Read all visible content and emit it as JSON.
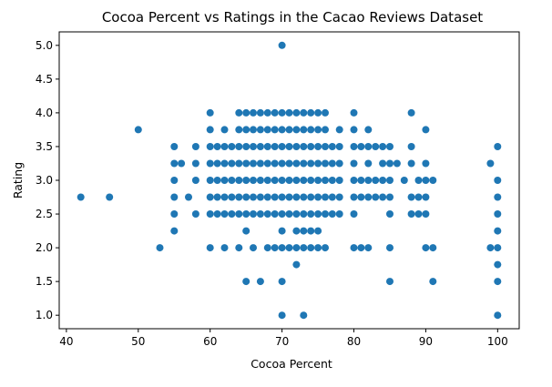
{
  "chart_data": {
    "type": "scatter",
    "title": "Cocoa Percent vs Ratings in the Cacao Reviews Dataset",
    "xlabel": "Cocoa Percent",
    "ylabel": "Rating",
    "xlim": [
      39,
      103
    ],
    "ylim": [
      0.8,
      5.2
    ],
    "xticks": [
      40,
      50,
      60,
      70,
      80,
      90,
      100
    ],
    "yticks": [
      1.0,
      1.5,
      2.0,
      2.5,
      3.0,
      3.5,
      4.0,
      4.5,
      5.0
    ],
    "xtick_labels": [
      "40",
      "50",
      "60",
      "70",
      "80",
      "90",
      "100"
    ],
    "ytick_labels": [
      "1.0",
      "1.5",
      "2.0",
      "2.5",
      "3.0",
      "3.5",
      "4.0",
      "4.5",
      "5.0"
    ],
    "grid": false,
    "marker_color": "#1f77b4",
    "points": [
      [
        42,
        2.75
      ],
      [
        46,
        2.75
      ],
      [
        50,
        3.75
      ],
      [
        53,
        2.0
      ],
      [
        55,
        3.5
      ],
      [
        55,
        3.25
      ],
      [
        55,
        3.0
      ],
      [
        55,
        2.75
      ],
      [
        55,
        2.5
      ],
      [
        55,
        2.25
      ],
      [
        56,
        3.25
      ],
      [
        57,
        2.75
      ],
      [
        58,
        3.5
      ],
      [
        58,
        3.25
      ],
      [
        58,
        3.0
      ],
      [
        58,
        2.5
      ],
      [
        60,
        4.0
      ],
      [
        60,
        3.75
      ],
      [
        60,
        3.5
      ],
      [
        60,
        3.25
      ],
      [
        60,
        3.0
      ],
      [
        60,
        2.75
      ],
      [
        60,
        2.5
      ],
      [
        60,
        2.0
      ],
      [
        61,
        3.5
      ],
      [
        61,
        3.25
      ],
      [
        61,
        3.0
      ],
      [
        61,
        2.75
      ],
      [
        61,
        2.5
      ],
      [
        62,
        3.75
      ],
      [
        62,
        3.5
      ],
      [
        62,
        3.25
      ],
      [
        62,
        3.0
      ],
      [
        62,
        2.75
      ],
      [
        62,
        2.5
      ],
      [
        62,
        2.0
      ],
      [
        63,
        3.5
      ],
      [
        63,
        3.25
      ],
      [
        63,
        3.0
      ],
      [
        63,
        2.75
      ],
      [
        63,
        2.5
      ],
      [
        64,
        4.0
      ],
      [
        64,
        3.75
      ],
      [
        64,
        3.5
      ],
      [
        64,
        3.25
      ],
      [
        64,
        3.0
      ],
      [
        64,
        2.75
      ],
      [
        64,
        2.5
      ],
      [
        64,
        2.0
      ],
      [
        65,
        4.0
      ],
      [
        65,
        3.75
      ],
      [
        65,
        3.5
      ],
      [
        65,
        3.25
      ],
      [
        65,
        3.0
      ],
      [
        65,
        2.75
      ],
      [
        65,
        2.5
      ],
      [
        65,
        2.25
      ],
      [
        65,
        1.5
      ],
      [
        66,
        4.0
      ],
      [
        66,
        3.75
      ],
      [
        66,
        3.5
      ],
      [
        66,
        3.25
      ],
      [
        66,
        3.0
      ],
      [
        66,
        2.75
      ],
      [
        66,
        2.5
      ],
      [
        66,
        2.0
      ],
      [
        67,
        4.0
      ],
      [
        67,
        3.75
      ],
      [
        67,
        3.5
      ],
      [
        67,
        3.25
      ],
      [
        67,
        3.0
      ],
      [
        67,
        2.75
      ],
      [
        67,
        2.5
      ],
      [
        67,
        1.5
      ],
      [
        68,
        4.0
      ],
      [
        68,
        3.75
      ],
      [
        68,
        3.5
      ],
      [
        68,
        3.25
      ],
      [
        68,
        3.0
      ],
      [
        68,
        2.75
      ],
      [
        68,
        2.5
      ],
      [
        68,
        2.0
      ],
      [
        69,
        4.0
      ],
      [
        69,
        3.75
      ],
      [
        69,
        3.5
      ],
      [
        69,
        3.25
      ],
      [
        69,
        3.0
      ],
      [
        69,
        2.75
      ],
      [
        69,
        2.5
      ],
      [
        69,
        2.0
      ],
      [
        70,
        5.0
      ],
      [
        70,
        4.0
      ],
      [
        70,
        3.75
      ],
      [
        70,
        3.5
      ],
      [
        70,
        3.25
      ],
      [
        70,
        3.0
      ],
      [
        70,
        2.75
      ],
      [
        70,
        2.5
      ],
      [
        70,
        2.25
      ],
      [
        70,
        2.0
      ],
      [
        70,
        1.5
      ],
      [
        70,
        1.0
      ],
      [
        71,
        4.0
      ],
      [
        71,
        3.75
      ],
      [
        71,
        3.5
      ],
      [
        71,
        3.25
      ],
      [
        71,
        3.0
      ],
      [
        71,
        2.75
      ],
      [
        71,
        2.5
      ],
      [
        71,
        2.0
      ],
      [
        72,
        4.0
      ],
      [
        72,
        3.75
      ],
      [
        72,
        3.5
      ],
      [
        72,
        3.25
      ],
      [
        72,
        3.0
      ],
      [
        72,
        2.75
      ],
      [
        72,
        2.5
      ],
      [
        72,
        2.25
      ],
      [
        72,
        2.0
      ],
      [
        72,
        1.75
      ],
      [
        73,
        4.0
      ],
      [
        73,
        3.75
      ],
      [
        73,
        3.5
      ],
      [
        73,
        3.25
      ],
      [
        73,
        3.0
      ],
      [
        73,
        2.75
      ],
      [
        73,
        2.5
      ],
      [
        73,
        2.25
      ],
      [
        73,
        2.0
      ],
      [
        73,
        1.0
      ],
      [
        74,
        4.0
      ],
      [
        74,
        3.75
      ],
      [
        74,
        3.5
      ],
      [
        74,
        3.25
      ],
      [
        74,
        3.0
      ],
      [
        74,
        2.75
      ],
      [
        74,
        2.5
      ],
      [
        74,
        2.25
      ],
      [
        74,
        2.0
      ],
      [
        75,
        4.0
      ],
      [
        75,
        3.75
      ],
      [
        75,
        3.5
      ],
      [
        75,
        3.25
      ],
      [
        75,
        3.0
      ],
      [
        75,
        2.75
      ],
      [
        75,
        2.5
      ],
      [
        75,
        2.25
      ],
      [
        75,
        2.0
      ],
      [
        76,
        4.0
      ],
      [
        76,
        3.75
      ],
      [
        76,
        3.5
      ],
      [
        76,
        3.25
      ],
      [
        76,
        3.0
      ],
      [
        76,
        2.75
      ],
      [
        76,
        2.5
      ],
      [
        76,
        2.0
      ],
      [
        77,
        3.5
      ],
      [
        77,
        3.25
      ],
      [
        77,
        3.0
      ],
      [
        77,
        2.75
      ],
      [
        77,
        2.5
      ],
      [
        78,
        3.75
      ],
      [
        78,
        3.5
      ],
      [
        78,
        3.25
      ],
      [
        78,
        3.0
      ],
      [
        78,
        2.75
      ],
      [
        78,
        2.5
      ],
      [
        80,
        4.0
      ],
      [
        80,
        3.75
      ],
      [
        80,
        3.5
      ],
      [
        80,
        3.25
      ],
      [
        80,
        3.0
      ],
      [
        80,
        2.75
      ],
      [
        80,
        2.5
      ],
      [
        80,
        2.0
      ],
      [
        81,
        3.5
      ],
      [
        81,
        3.0
      ],
      [
        81,
        2.75
      ],
      [
        81,
        2.0
      ],
      [
        82,
        3.75
      ],
      [
        82,
        3.5
      ],
      [
        82,
        3.25
      ],
      [
        82,
        3.0
      ],
      [
        82,
        2.75
      ],
      [
        82,
        2.0
      ],
      [
        83,
        3.5
      ],
      [
        83,
        3.0
      ],
      [
        83,
        2.75
      ],
      [
        84,
        3.5
      ],
      [
        84,
        3.25
      ],
      [
        84,
        3.0
      ],
      [
        84,
        2.75
      ],
      [
        85,
        3.5
      ],
      [
        85,
        3.25
      ],
      [
        85,
        3.0
      ],
      [
        85,
        2.75
      ],
      [
        85,
        2.5
      ],
      [
        85,
        2.0
      ],
      [
        85,
        1.5
      ],
      [
        86,
        3.25
      ],
      [
        87,
        3.0
      ],
      [
        88,
        4.0
      ],
      [
        88,
        3.5
      ],
      [
        88,
        3.25
      ],
      [
        88,
        2.75
      ],
      [
        88,
        2.5
      ],
      [
        89,
        3.0
      ],
      [
        89,
        2.75
      ],
      [
        89,
        2.5
      ],
      [
        90,
        3.75
      ],
      [
        90,
        3.25
      ],
      [
        90,
        3.0
      ],
      [
        90,
        2.75
      ],
      [
        90,
        2.5
      ],
      [
        90,
        2.0
      ],
      [
        91,
        3.0
      ],
      [
        91,
        2.0
      ],
      [
        91,
        1.5
      ],
      [
        99,
        3.25
      ],
      [
        99,
        2.0
      ],
      [
        100,
        3.5
      ],
      [
        100,
        3.0
      ],
      [
        100,
        2.75
      ],
      [
        100,
        2.5
      ],
      [
        100,
        2.25
      ],
      [
        100,
        2.0
      ],
      [
        100,
        1.75
      ],
      [
        100,
        1.5
      ],
      [
        100,
        1.0
      ]
    ]
  }
}
